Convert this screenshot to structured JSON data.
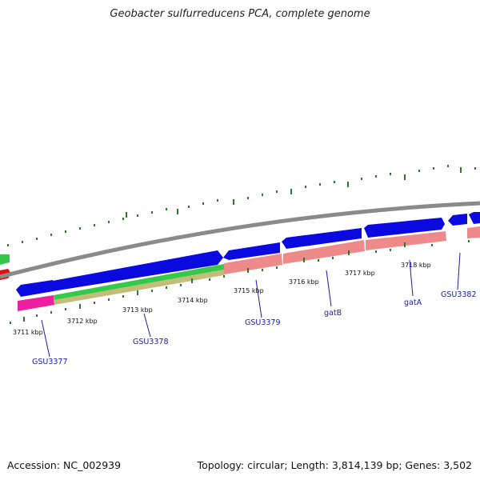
{
  "title": "Geobacter sulfurreducens PCA, complete genome",
  "accession": "Accession: NC_002939",
  "topology": "Topology: circular; Length: 3,814,139 bp; Genes: 3,502",
  "colors": {
    "backbone": "#8a8a8a",
    "forward_gene": "#0a0ae0",
    "reverse_cds_salmon": "#ef8a8a",
    "reverse_cds_pink": "#ee1fa0",
    "green_feature": "#35c84a",
    "olive_feature": "#c2bd78",
    "tick": "#2a7a2a",
    "label": "#1a1aa8"
  },
  "scale_labels": [
    "3711 kbp",
    "3712 kbp",
    "3713 kbp",
    "3714 kbp",
    "3715 kbp",
    "3716 kbp",
    "3717 kbp",
    "3718 kbp"
  ],
  "gene_labels": [
    "GSU3377",
    "GSU3378",
    "GSU3379",
    "gatB",
    "gatA",
    "GSU3382"
  ]
}
